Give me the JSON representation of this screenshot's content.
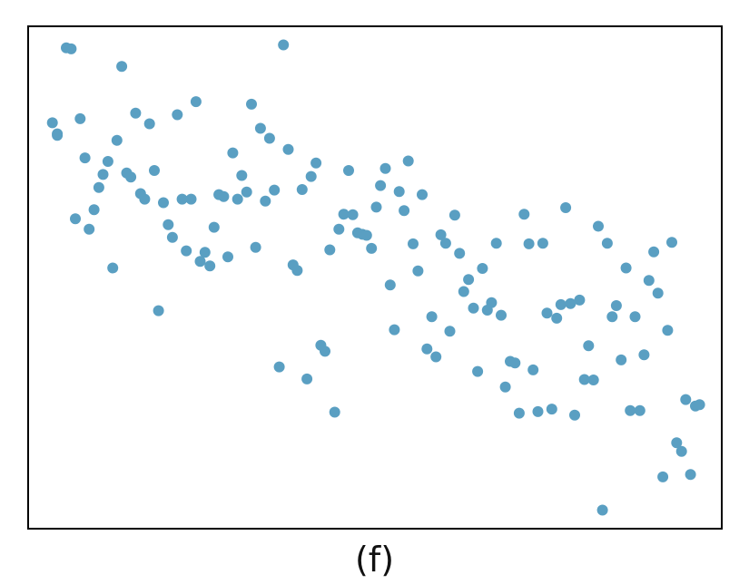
{
  "caption": "(f)",
  "colors": {
    "point": "#5a9fc2",
    "frame": "#000000"
  },
  "chart_data": {
    "type": "scatter",
    "title": "",
    "xlabel": "",
    "ylabel": "",
    "axes_visible": false,
    "grid": false,
    "xlim": [
      0,
      100
    ],
    "ylim": [
      0,
      100
    ],
    "series": [
      {
        "points": [
          [
            3.5,
            80.8
          ],
          [
            4.2,
            78.6
          ],
          [
            4.2,
            78.3
          ],
          [
            5.5,
            95.7
          ],
          [
            6.2,
            95.5
          ],
          [
            6.8,
            61.7
          ],
          [
            7.5,
            81.6
          ],
          [
            8.2,
            73.8
          ],
          [
            8.8,
            59.6
          ],
          [
            9.5,
            63.5
          ],
          [
            10.2,
            67.9
          ],
          [
            10.8,
            70.5
          ],
          [
            11.5,
            73.1
          ],
          [
            12.2,
            51.9
          ],
          [
            12.8,
            77.3
          ],
          [
            13.5,
            92.0
          ],
          [
            14.2,
            70.8
          ],
          [
            14.8,
            70.0
          ],
          [
            15.5,
            82.7
          ],
          [
            16.2,
            66.7
          ],
          [
            16.8,
            65.6
          ],
          [
            17.5,
            80.6
          ],
          [
            18.2,
            71.3
          ],
          [
            18.8,
            43.4
          ],
          [
            19.5,
            64.9
          ],
          [
            20.2,
            60.5
          ],
          [
            20.8,
            58.0
          ],
          [
            21.5,
            82.4
          ],
          [
            22.2,
            65.6
          ],
          [
            22.8,
            55.3
          ],
          [
            23.5,
            65.6
          ],
          [
            24.2,
            85.0
          ],
          [
            24.8,
            53.2
          ],
          [
            25.5,
            55.0
          ],
          [
            26.2,
            52.3
          ],
          [
            26.8,
            60.0
          ],
          [
            27.5,
            66.5
          ],
          [
            28.2,
            66.1
          ],
          [
            28.8,
            54.1
          ],
          [
            29.5,
            74.8
          ],
          [
            30.2,
            65.6
          ],
          [
            30.8,
            70.3
          ],
          [
            31.5,
            67.0
          ],
          [
            32.2,
            84.5
          ],
          [
            32.8,
            56.0
          ],
          [
            33.5,
            79.7
          ],
          [
            34.2,
            65.2
          ],
          [
            34.8,
            77.7
          ],
          [
            35.5,
            67.4
          ],
          [
            36.2,
            32.2
          ],
          [
            36.8,
            96.3
          ],
          [
            37.5,
            75.5
          ],
          [
            38.2,
            52.5
          ],
          [
            38.8,
            51.4
          ],
          [
            39.5,
            67.5
          ],
          [
            40.2,
            29.8
          ],
          [
            40.8,
            70.1
          ],
          [
            41.5,
            72.8
          ],
          [
            42.2,
            36.5
          ],
          [
            42.8,
            35.3
          ],
          [
            43.5,
            55.5
          ],
          [
            44.2,
            23.2
          ],
          [
            44.8,
            59.6
          ],
          [
            45.5,
            62.6
          ],
          [
            46.2,
            71.3
          ],
          [
            46.8,
            62.5
          ],
          [
            47.5,
            58.9
          ],
          [
            48.2,
            58.6
          ],
          [
            48.8,
            58.4
          ],
          [
            49.5,
            55.8
          ],
          [
            50.2,
            64.0
          ],
          [
            50.8,
            68.3
          ],
          [
            51.5,
            71.7
          ],
          [
            52.2,
            48.5
          ],
          [
            52.8,
            39.6
          ],
          [
            53.5,
            67.1
          ],
          [
            54.2,
            63.3
          ],
          [
            54.8,
            73.2
          ],
          [
            55.5,
            56.7
          ],
          [
            56.2,
            51.3
          ],
          [
            56.8,
            66.5
          ],
          [
            57.5,
            35.8
          ],
          [
            58.2,
            42.2
          ],
          [
            58.8,
            34.2
          ],
          [
            59.5,
            58.5
          ],
          [
            60.2,
            56.8
          ],
          [
            60.8,
            39.3
          ],
          [
            61.5,
            62.4
          ],
          [
            62.2,
            54.8
          ],
          [
            62.8,
            47.2
          ],
          [
            63.5,
            49.6
          ],
          [
            64.2,
            43.9
          ],
          [
            64.8,
            31.3
          ],
          [
            65.5,
            51.8
          ],
          [
            66.2,
            43.5
          ],
          [
            66.8,
            45.0
          ],
          [
            67.5,
            56.8
          ],
          [
            68.2,
            42.5
          ],
          [
            68.8,
            28.2
          ],
          [
            69.5,
            33.3
          ],
          [
            70.2,
            33.0
          ],
          [
            70.8,
            23.0
          ],
          [
            71.5,
            62.6
          ],
          [
            72.2,
            56.7
          ],
          [
            72.8,
            31.6
          ],
          [
            73.5,
            23.3
          ],
          [
            74.2,
            56.8
          ],
          [
            74.8,
            42.9
          ],
          [
            75.5,
            23.8
          ],
          [
            76.2,
            41.9
          ],
          [
            76.8,
            44.6
          ],
          [
            77.5,
            63.9
          ],
          [
            78.2,
            44.8
          ],
          [
            78.8,
            22.6
          ],
          [
            79.5,
            45.5
          ],
          [
            80.2,
            29.7
          ],
          [
            80.8,
            36.4
          ],
          [
            81.5,
            29.6
          ],
          [
            82.2,
            60.2
          ],
          [
            82.8,
            3.7
          ],
          [
            83.5,
            56.8
          ],
          [
            84.2,
            42.2
          ],
          [
            84.8,
            44.4
          ],
          [
            85.5,
            33.6
          ],
          [
            86.2,
            51.9
          ],
          [
            86.8,
            23.5
          ],
          [
            87.5,
            42.2
          ],
          [
            88.2,
            23.5
          ],
          [
            88.8,
            34.6
          ],
          [
            89.5,
            49.4
          ],
          [
            90.2,
            55.1
          ],
          [
            90.8,
            46.9
          ],
          [
            91.5,
            10.3
          ],
          [
            92.2,
            39.5
          ],
          [
            92.8,
            57.0
          ],
          [
            93.5,
            17.1
          ],
          [
            94.2,
            15.4
          ],
          [
            94.8,
            25.7
          ],
          [
            95.5,
            10.8
          ],
          [
            96.2,
            24.4
          ],
          [
            96.8,
            24.7
          ]
        ]
      }
    ]
  }
}
